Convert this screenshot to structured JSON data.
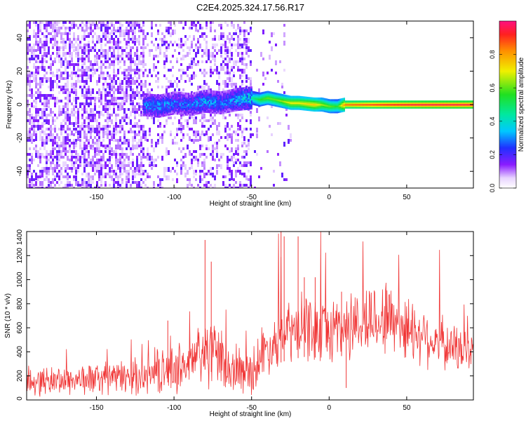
{
  "title": "C2E4.2025.324.17.56.R17",
  "colors": {
    "series": "#f03535",
    "axis": "#000000",
    "spectrum_point": "#8a1cff"
  },
  "chart_data": [
    {
      "type": "heatmap",
      "name": "spectrogram",
      "xlabel": "Height of straight line (km)",
      "ylabel": "Frequency (Hz)",
      "xlim": [
        -195,
        93
      ],
      "ylim": [
        -50,
        50
      ],
      "xticks": [
        -150,
        -100,
        -50,
        0,
        50
      ],
      "yticks": [
        -40,
        -20,
        0,
        20,
        40
      ],
      "colorbar": {
        "label": "Normalized spectral amplitude",
        "range": [
          0,
          1
        ],
        "ticks": [
          "0.0",
          "0.2",
          "0.4",
          "0.6",
          "0.8"
        ]
      },
      "ridge": [
        {
          "x": -120,
          "y": 0,
          "v": 0.3
        },
        {
          "x": -110,
          "y": -1,
          "v": 0.35
        },
        {
          "x": -100,
          "y": 1,
          "v": 0.3
        },
        {
          "x": -90,
          "y": 0,
          "v": 0.3
        },
        {
          "x": -80,
          "y": 2,
          "v": 0.35
        },
        {
          "x": -70,
          "y": 1,
          "v": 0.3
        },
        {
          "x": -60,
          "y": 3,
          "v": 0.35
        },
        {
          "x": -50,
          "y": 4,
          "v": 0.45
        },
        {
          "x": -45,
          "y": 3,
          "v": 0.55
        },
        {
          "x": -40,
          "y": 4,
          "v": 0.6
        },
        {
          "x": -35,
          "y": 3,
          "v": 0.6
        },
        {
          "x": -30,
          "y": 2,
          "v": 0.65
        },
        {
          "x": -25,
          "y": 1,
          "v": 0.7
        },
        {
          "x": -20,
          "y": 1,
          "v": 0.7
        },
        {
          "x": -10,
          "y": 0,
          "v": 0.75
        },
        {
          "x": -5,
          "y": 0,
          "v": 0.65
        },
        {
          "x": 0,
          "y": -1,
          "v": 0.6
        },
        {
          "x": 5,
          "y": -1,
          "v": 0.55
        },
        {
          "x": 10,
          "y": 0,
          "v": 0.85
        },
        {
          "x": 30,
          "y": 0,
          "v": 0.9
        },
        {
          "x": 60,
          "y": 0,
          "v": 0.95
        },
        {
          "x": 93,
          "y": 0,
          "v": 0.95
        }
      ]
    },
    {
      "type": "line",
      "name": "snr",
      "xlabel": "Height of straight line (km)",
      "ylabel": "SNR (10 * v/v)",
      "xlim": [
        -195,
        93
      ],
      "ylim": [
        0,
        1400
      ],
      "xticks": [
        -150,
        -100,
        -50,
        0,
        50
      ],
      "yticks": [
        0,
        200,
        400,
        600,
        800,
        1000,
        1200,
        1400
      ],
      "series": [
        {
          "x": [
            -195,
            -180,
            -160,
            -140,
            -120,
            -110,
            -100,
            -90,
            -85,
            -80,
            -75,
            -70,
            -65,
            -60,
            -55,
            -50,
            -45,
            -40,
            -35,
            -30,
            -25,
            -20,
            -15,
            -10,
            -5,
            0,
            5,
            10,
            15,
            20,
            30,
            40,
            50,
            60,
            70,
            80,
            93
          ],
          "y": [
            150,
            160,
            170,
            180,
            200,
            220,
            260,
            300,
            340,
            420,
            380,
            300,
            260,
            230,
            220,
            250,
            330,
            420,
            480,
            530,
            560,
            580,
            600,
            590,
            580,
            560,
            620,
            600,
            620,
            640,
            680,
            690,
            600,
            550,
            480,
            430,
            400
          ],
          "spikes": [
            {
              "x": -104,
              "y": 660
            },
            {
              "x": -80,
              "y": 1330
            },
            {
              "x": -76,
              "y": 1150
            },
            {
              "x": -31,
              "y": 1400
            },
            {
              "x": -29,
              "y": 1360
            },
            {
              "x": -20,
              "y": 1360
            },
            {
              "x": -16,
              "y": 1020
            },
            {
              "x": -9,
              "y": 1020
            },
            {
              "x": 8,
              "y": 900
            }
          ],
          "dips": [
            {
              "x": 11,
              "y": 100
            }
          ]
        }
      ]
    }
  ]
}
